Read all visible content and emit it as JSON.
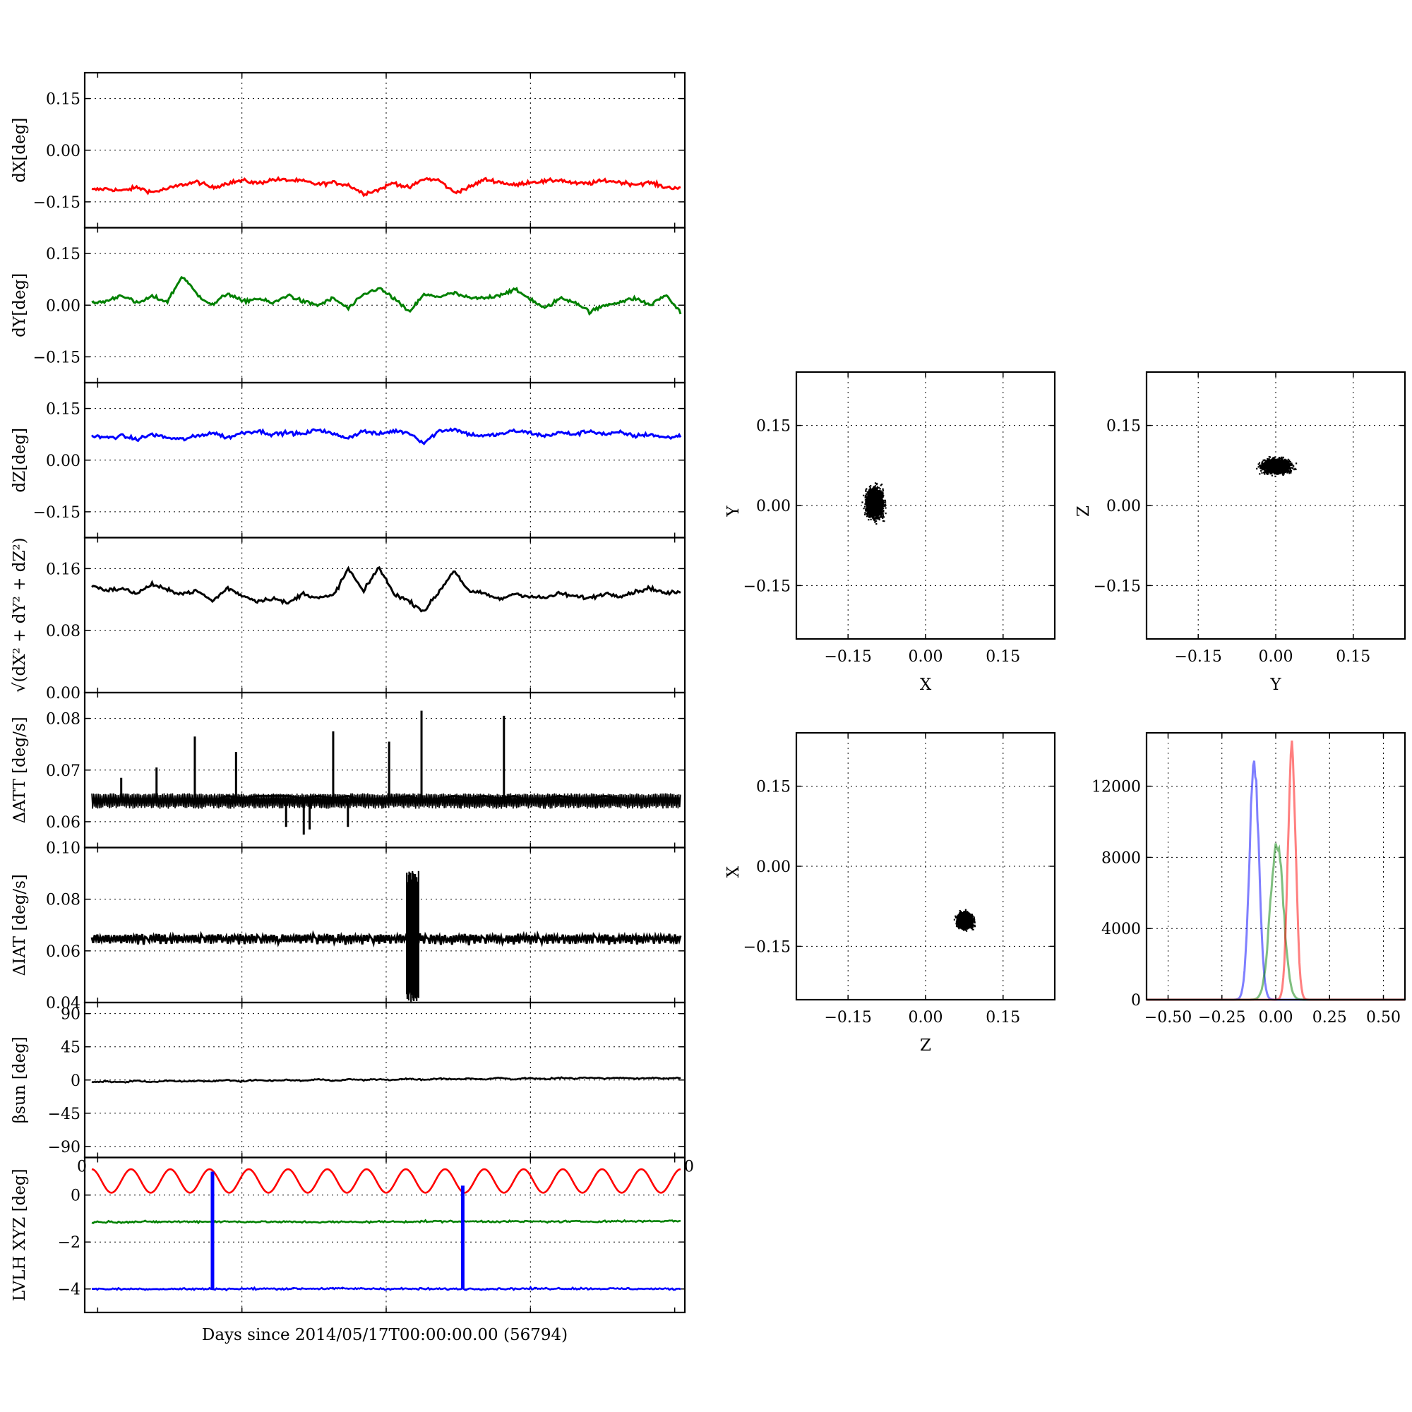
{
  "figure": {
    "xlabel": "Days since 2014/05/17T00:00:00.00 (56794)",
    "colors": {
      "x": "#ff0000",
      "y": "#008000",
      "z": "#0000ff",
      "k": "#000000"
    }
  },
  "chart_data": [
    {
      "type": "line",
      "id": "dX",
      "ylabel": "dX[deg]",
      "ylim": [
        -0.225,
        0.225
      ],
      "yticks": [
        "0.15",
        "0.00",
        "−0.15"
      ],
      "ytick_values": [
        0.15,
        0.0,
        -0.15
      ],
      "xlim": [
        0,
        1
      ],
      "grid": true,
      "series": [
        {
          "color": "x",
          "values": [
            -0.115,
            -0.112,
            -0.118,
            -0.108,
            -0.122,
            -0.112,
            -0.1,
            -0.092,
            -0.109,
            -0.095,
            -0.088,
            -0.096,
            -0.085,
            -0.087,
            -0.09,
            -0.099,
            -0.094,
            -0.101,
            -0.126,
            -0.115,
            -0.094,
            -0.11,
            -0.083,
            -0.087,
            -0.123,
            -0.108,
            -0.085,
            -0.092,
            -0.102,
            -0.092,
            -0.091,
            -0.086,
            -0.097,
            -0.096,
            -0.088,
            -0.093,
            -0.099,
            -0.094,
            -0.108,
            -0.109
          ]
        }
      ]
    },
    {
      "type": "line",
      "id": "dY",
      "ylabel": "dY[deg]",
      "ylim": [
        -0.225,
        0.225
      ],
      "yticks": [
        "0.15",
        "0.00",
        "−0.15"
      ],
      "ytick_values": [
        0.15,
        0.0,
        -0.15
      ],
      "xlim": [
        0,
        1
      ],
      "grid": true,
      "series": [
        {
          "color": "y",
          "values": [
            0.005,
            0.012,
            0.03,
            0.005,
            0.025,
            0.01,
            0.085,
            0.03,
            0.0,
            0.035,
            0.01,
            0.02,
            0.005,
            0.03,
            0.01,
            0.0,
            0.02,
            -0.01,
            0.03,
            0.05,
            0.02,
            -0.02,
            0.03,
            0.025,
            0.035,
            0.02,
            0.02,
            0.03,
            0.045,
            0.02,
            -0.01,
            0.02,
            0.01,
            -0.02,
            0.0,
            0.01,
            0.02,
            0.0,
            0.03,
            -0.02
          ]
        }
      ]
    },
    {
      "type": "line",
      "id": "dZ",
      "ylabel": "dZ[deg]",
      "ylim": [
        -0.225,
        0.225
      ],
      "yticks": [
        "0.15",
        "0.00",
        "−0.15"
      ],
      "ytick_values": [
        0.15,
        0.0,
        -0.15
      ],
      "xlim": [
        0,
        1
      ],
      "grid": true,
      "series": [
        {
          "color": "z",
          "values": [
            0.07,
            0.065,
            0.07,
            0.06,
            0.075,
            0.065,
            0.06,
            0.07,
            0.08,
            0.065,
            0.08,
            0.085,
            0.075,
            0.08,
            0.075,
            0.09,
            0.075,
            0.065,
            0.085,
            0.075,
            0.085,
            0.08,
            0.05,
            0.085,
            0.09,
            0.075,
            0.07,
            0.075,
            0.085,
            0.08,
            0.07,
            0.08,
            0.075,
            0.085,
            0.075,
            0.08,
            0.07,
            0.075,
            0.065,
            0.07
          ]
        }
      ]
    },
    {
      "type": "line",
      "id": "norm",
      "ylabel": "√(dX² + dY² + dZ²)",
      "ylim": [
        0,
        0.2
      ],
      "yticks": [
        "0.16",
        "0.08",
        "0.00"
      ],
      "ytick_values": [
        0.16,
        0.08,
        0.0
      ],
      "xlim": [
        0,
        1
      ],
      "grid": true,
      "series": [
        {
          "color": "k",
          "values": [
            0.138,
            0.132,
            0.134,
            0.128,
            0.14,
            0.132,
            0.128,
            0.131,
            0.118,
            0.135,
            0.125,
            0.118,
            0.122,
            0.115,
            0.128,
            0.122,
            0.125,
            0.16,
            0.13,
            0.162,
            0.128,
            0.118,
            0.105,
            0.13,
            0.158,
            0.13,
            0.128,
            0.12,
            0.128,
            0.124,
            0.122,
            0.128,
            0.124,
            0.122,
            0.128,
            0.125,
            0.13,
            0.135,
            0.128,
            0.13
          ]
        }
      ]
    },
    {
      "type": "line",
      "id": "dATT",
      "ylabel": "ΔATT [deg/s]",
      "ylim": [
        0.055,
        0.085
      ],
      "yticks": [
        "0.08",
        "0.07",
        "0.06"
      ],
      "ytick_values": [
        0.08,
        0.07,
        0.06
      ],
      "xlim": [
        0,
        1
      ],
      "grid": true,
      "band": [
        0.0625,
        0.0655
      ],
      "series": [
        {
          "color": "k",
          "values": [
            0.064,
            0.064,
            0.064,
            0.0645,
            0.064,
            0.064,
            0.064,
            0.0645,
            0.064,
            0.065,
            0.0645,
            0.065,
            0.065,
            0.065,
            0.0645,
            0.065,
            0.0645,
            0.065,
            0.064,
            0.0645,
            0.0645,
            0.065,
            0.064,
            0.0645,
            0.065,
            0.0645,
            0.065,
            0.0645,
            0.065,
            0.064,
            0.0645,
            0.065,
            0.0645,
            0.0645,
            0.065,
            0.0645,
            0.064,
            0.0645,
            0.0645,
            0.0645
          ]
        }
      ],
      "spikes_x": [
        0.05,
        0.11,
        0.175,
        0.245,
        0.41,
        0.505,
        0.56,
        0.7,
        0.37,
        0.33,
        0.36,
        0.435
      ],
      "spikes_y": [
        0.0685,
        0.0705,
        0.0765,
        0.0735,
        0.0775,
        0.0755,
        0.0815,
        0.0805,
        0.0585,
        0.059,
        0.0575,
        0.059
      ]
    },
    {
      "type": "line",
      "id": "dIAT",
      "ylabel": "ΔIAT [deg/s]",
      "ylim": [
        0.04,
        0.1
      ],
      "yticks": [
        "0.10",
        "0.08",
        "0.06",
        "0.04"
      ],
      "ytick_values": [
        0.1,
        0.08,
        0.06,
        0.04
      ],
      "xlim": [
        0,
        1
      ],
      "grid": true,
      "series": [
        {
          "color": "k",
          "values": [
            0.065,
            0.063,
            0.066,
            0.064,
            0.066,
            0.063,
            0.066,
            0.064,
            0.066,
            0.063,
            0.066,
            0.064,
            0.066,
            0.063,
            0.065,
            0.064,
            0.066,
            0.063,
            0.066,
            0.064,
            0.066,
            0.063,
            0.066,
            0.064,
            0.066,
            0.063,
            0.066,
            0.064,
            0.066,
            0.063,
            0.066,
            0.064,
            0.066,
            0.063,
            0.066,
            0.064,
            0.066,
            0.063,
            0.066,
            0.065
          ]
        }
      ],
      "burst_x": [
        0.535,
        0.555
      ],
      "burst_y": [
        0.04,
        0.091
      ]
    },
    {
      "type": "line",
      "id": "beta",
      "ylabel": "βsun [deg]",
      "ylim": [
        -105,
        105
      ],
      "yticks": [
        "90",
        "45",
        "0",
        "−45",
        "−90"
      ],
      "ytick_values": [
        90,
        45,
        0,
        -45,
        -90
      ],
      "xlim": [
        0,
        1
      ],
      "grid": true,
      "series": [
        {
          "color": "k",
          "values": [
            -3,
            -2,
            -3,
            -1,
            -3,
            -1,
            -2,
            -1,
            -2,
            0,
            -2,
            0,
            -1,
            0,
            -1,
            1,
            -1,
            1,
            0,
            1,
            0,
            2,
            0,
            2,
            1,
            2,
            1,
            3,
            1,
            3,
            1,
            3,
            2,
            3,
            2,
            3,
            2,
            3,
            2,
            3
          ]
        }
      ]
    },
    {
      "type": "line",
      "id": "lvlh",
      "ylabel": "LVLH XYZ [deg]",
      "ylim": [
        -5,
        1.6
      ],
      "yticks": [
        "0",
        "−2",
        "−4"
      ],
      "ytick_values": [
        0,
        -2,
        -4
      ],
      "xlim": [
        0,
        1
      ],
      "grid": true,
      "corner_labels": [
        "0",
        "0"
      ],
      "series": [
        {
          "color": "x",
          "sine": [
            0.6,
            0.5,
            15
          ]
        },
        {
          "color": "y",
          "values": [
            -1.15,
            -1.13,
            -1.15,
            -1.12,
            -1.13,
            -1.1
          ]
        },
        {
          "color": "z",
          "values": [
            -4.0,
            -4.0,
            -3.98,
            -4.0,
            -3.98,
            -4.0
          ]
        }
      ],
      "spikes_x": [
        0.205,
        0.63
      ],
      "spikes_y": [
        1.0,
        0.4
      ]
    },
    {
      "type": "scatter",
      "id": "XY",
      "xlabel": "X",
      "ylabel": "Y",
      "xlim": [
        -0.25,
        0.25
      ],
      "ylim": [
        -0.25,
        0.25
      ],
      "xticks": [
        "−0.15",
        "0.00",
        "0.15"
      ],
      "yticks": [
        "0.15",
        "0.00",
        "−0.15"
      ],
      "grid": true,
      "center": [
        -0.1,
        0.005
      ],
      "spread": [
        0.015,
        0.025
      ]
    },
    {
      "type": "scatter",
      "id": "YZ",
      "xlabel": "Y",
      "ylabel": "Z",
      "xlim": [
        -0.25,
        0.25
      ],
      "ylim": [
        -0.25,
        0.25
      ],
      "xticks": [
        "−0.15",
        "0.00",
        "0.15"
      ],
      "yticks": [
        "0.15",
        "0.00",
        "−0.15"
      ],
      "grid": true,
      "center": [
        0.0,
        0.075
      ],
      "spread": [
        0.025,
        0.012
      ]
    },
    {
      "type": "scatter",
      "id": "ZX",
      "xlabel": "Z",
      "ylabel": "X",
      "xlim": [
        -0.25,
        0.25
      ],
      "ylim": [
        -0.25,
        0.25
      ],
      "xticks": [
        "−0.15",
        "0.00",
        "0.15"
      ],
      "yticks": [
        "0.15",
        "0.00",
        "−0.15"
      ],
      "grid": true,
      "center": [
        0.075,
        -0.1
      ],
      "spread": [
        0.013,
        0.013
      ]
    },
    {
      "type": "line",
      "id": "hist",
      "xlim": [
        -0.6,
        0.6
      ],
      "ylim": [
        0,
        15000
      ],
      "xticks": [
        "−0.50",
        "−0.25",
        "0.00",
        "0.25",
        "0.50"
      ],
      "xtick_values": [
        -0.5,
        -0.25,
        0.0,
        0.25,
        0.5
      ],
      "yticks": [
        "12000",
        "8000",
        "4000",
        "0"
      ],
      "ytick_values": [
        12000,
        8000,
        4000,
        0
      ],
      "grid": true,
      "series": [
        {
          "color": "z",
          "alpha": 0.5,
          "peak_x": -0.1,
          "peak_y": 14000,
          "width": 0.022
        },
        {
          "color": "y",
          "alpha": 0.5,
          "peak_x": 0.005,
          "peak_y": 9400,
          "width": 0.03
        },
        {
          "color": "x",
          "alpha": 0.5,
          "peak_x": 0.075,
          "peak_y": 14800,
          "width": 0.018
        }
      ]
    }
  ]
}
